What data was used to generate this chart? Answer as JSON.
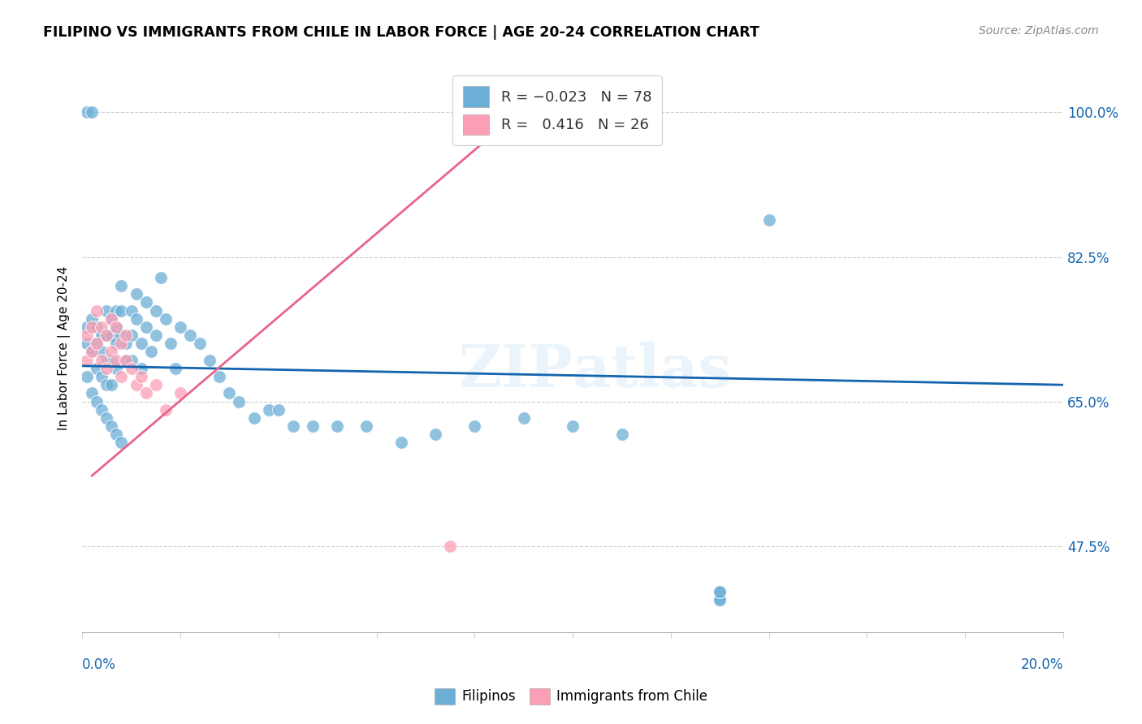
{
  "title": "FILIPINO VS IMMIGRANTS FROM CHILE IN LABOR FORCE | AGE 20-24 CORRELATION CHART",
  "source": "Source: ZipAtlas.com",
  "ylabel": "In Labor Force | Age 20-24",
  "yticks": [
    0.475,
    0.65,
    0.825,
    1.0
  ],
  "ytick_labels": [
    "47.5%",
    "65.0%",
    "82.5%",
    "100.0%"
  ],
  "blue_color": "#6baed6",
  "pink_color": "#fa9fb5",
  "line_blue": "#1464af",
  "line_pink": "#e8648a",
  "filipinos_label": "Filipinos",
  "chile_label": "Immigrants from Chile",
  "xmin": 0.0,
  "xmax": 0.2,
  "ymin": 0.37,
  "ymax": 1.06,
  "blue_line_x": [
    0.0,
    0.2
  ],
  "blue_line_y": [
    0.693,
    0.67
  ],
  "pink_line_x": [
    0.002,
    0.09
  ],
  "pink_line_y": [
    0.56,
    1.005
  ],
  "blue_x": [
    0.001,
    0.001,
    0.002,
    0.002,
    0.003,
    0.003,
    0.003,
    0.004,
    0.004,
    0.004,
    0.005,
    0.005,
    0.005,
    0.005,
    0.006,
    0.006,
    0.006,
    0.006,
    0.007,
    0.007,
    0.007,
    0.007,
    0.008,
    0.008,
    0.008,
    0.009,
    0.009,
    0.01,
    0.01,
    0.01,
    0.011,
    0.011,
    0.012,
    0.012,
    0.013,
    0.013,
    0.014,
    0.015,
    0.015,
    0.016,
    0.017,
    0.018,
    0.019,
    0.02,
    0.022,
    0.024,
    0.026,
    0.028,
    0.03,
    0.032,
    0.035,
    0.038,
    0.04,
    0.043,
    0.047,
    0.052,
    0.058,
    0.065,
    0.072,
    0.08,
    0.09,
    0.1,
    0.11,
    0.14,
    0.001,
    0.002,
    0.003,
    0.004,
    0.005,
    0.006,
    0.007,
    0.008,
    0.13,
    0.13,
    0.13,
    0.13,
    0.001,
    0.002
  ],
  "blue_y": [
    0.74,
    0.72,
    0.75,
    0.71,
    0.74,
    0.72,
    0.69,
    0.73,
    0.71,
    0.68,
    0.76,
    0.73,
    0.7,
    0.67,
    0.75,
    0.73,
    0.7,
    0.67,
    0.76,
    0.74,
    0.72,
    0.69,
    0.79,
    0.76,
    0.73,
    0.72,
    0.7,
    0.76,
    0.73,
    0.7,
    0.78,
    0.75,
    0.72,
    0.69,
    0.77,
    0.74,
    0.71,
    0.76,
    0.73,
    0.8,
    0.75,
    0.72,
    0.69,
    0.74,
    0.73,
    0.72,
    0.7,
    0.68,
    0.66,
    0.65,
    0.63,
    0.64,
    0.64,
    0.62,
    0.62,
    0.62,
    0.62,
    0.6,
    0.61,
    0.62,
    0.63,
    0.62,
    0.61,
    0.87,
    0.68,
    0.66,
    0.65,
    0.64,
    0.63,
    0.62,
    0.61,
    0.6,
    0.41,
    0.42,
    0.41,
    0.42,
    1.0,
    1.0
  ],
  "pink_x": [
    0.001,
    0.001,
    0.002,
    0.002,
    0.003,
    0.003,
    0.004,
    0.004,
    0.005,
    0.005,
    0.006,
    0.006,
    0.007,
    0.007,
    0.008,
    0.008,
    0.009,
    0.009,
    0.01,
    0.011,
    0.012,
    0.013,
    0.015,
    0.017,
    0.075,
    0.02
  ],
  "pink_y": [
    0.73,
    0.7,
    0.74,
    0.71,
    0.76,
    0.72,
    0.74,
    0.7,
    0.73,
    0.69,
    0.75,
    0.71,
    0.74,
    0.7,
    0.72,
    0.68,
    0.73,
    0.7,
    0.69,
    0.67,
    0.68,
    0.66,
    0.67,
    0.64,
    0.475,
    0.66
  ]
}
